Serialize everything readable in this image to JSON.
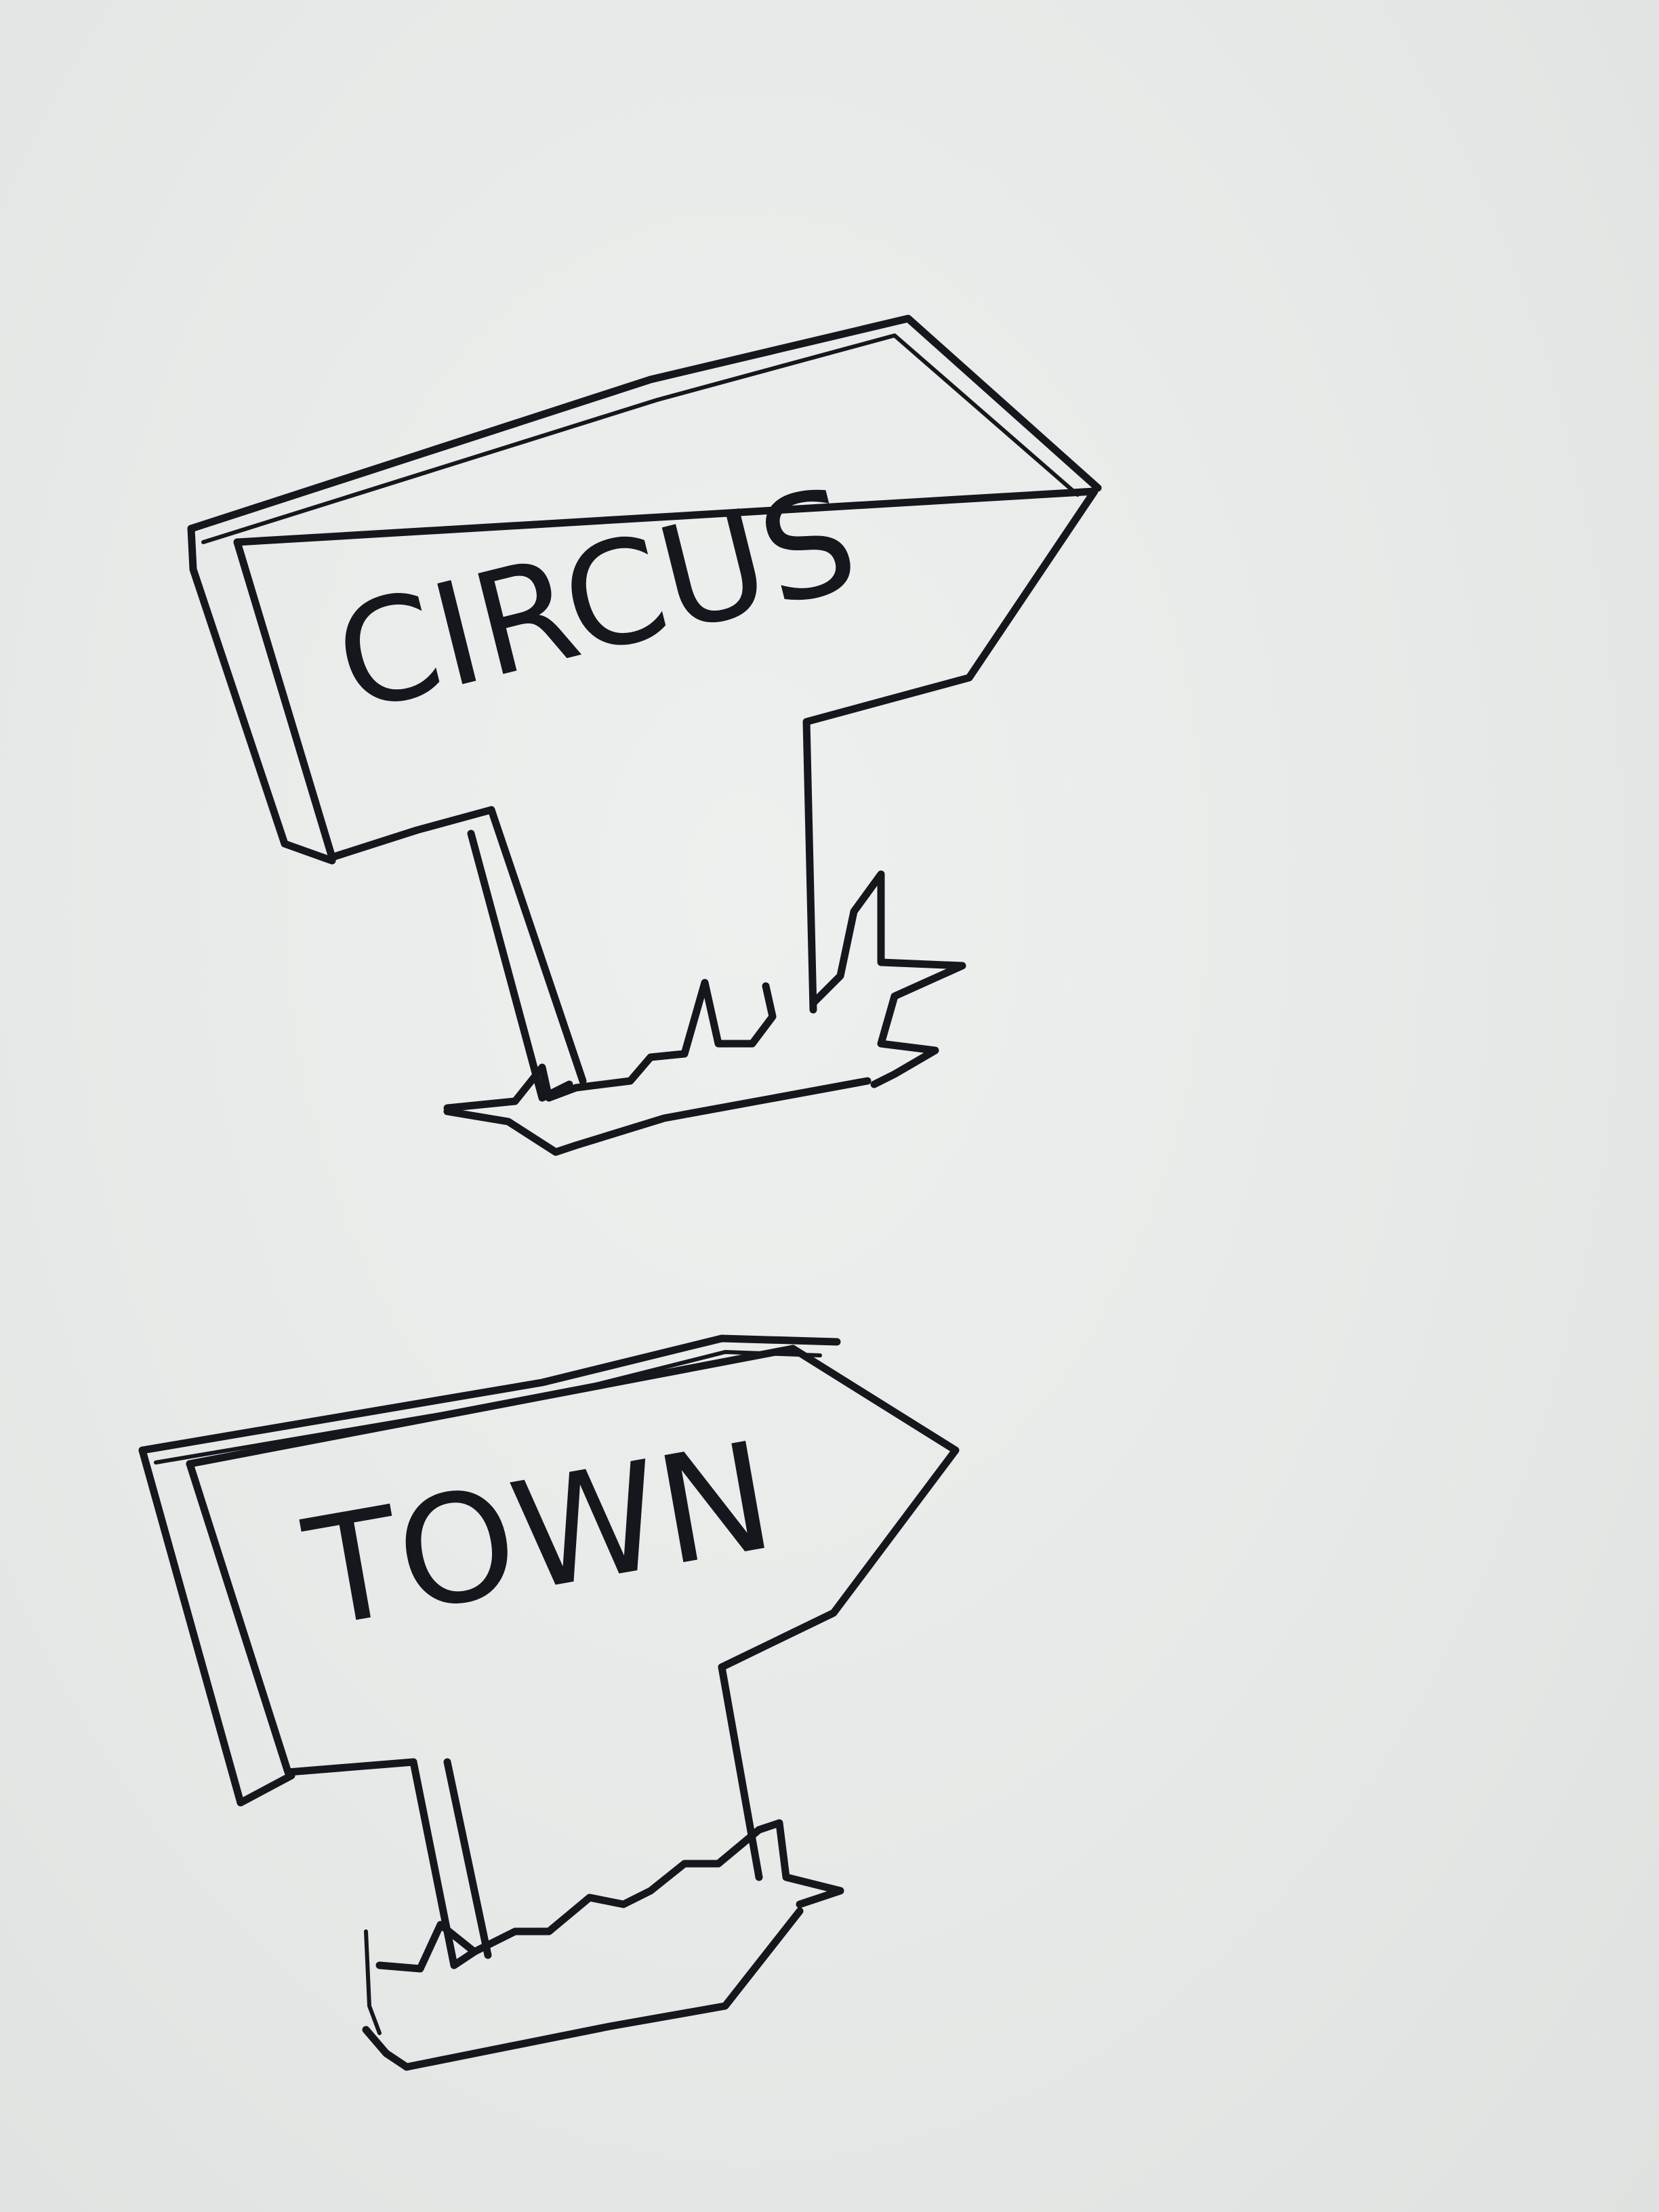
{
  "sketch": {
    "circus_sign": {
      "text": "CIRCUS"
    },
    "town_sign": {
      "text": "TOWN"
    }
  },
  "colors": {
    "paper": "#e7e9e8",
    "ink": "#15171c"
  }
}
